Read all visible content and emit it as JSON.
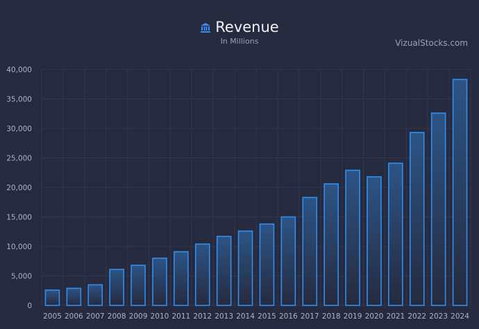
{
  "header": {
    "title": "Revenue",
    "subtitle": "In Millions",
    "watermark": "VizualStocks.com",
    "icon": "bank-icon"
  },
  "colors": {
    "background": "#262a3e",
    "bar_stroke": "#2f8ef0",
    "bar_fill_top": "#2c5486",
    "grid": "#323650"
  },
  "chart_data": {
    "type": "bar",
    "title": "Revenue",
    "subtitle": "In Millions",
    "categories": [
      "2005",
      "2006",
      "2007",
      "2008",
      "2009",
      "2010",
      "2011",
      "2012",
      "2013",
      "2014",
      "2015",
      "2016",
      "2017",
      "2018",
      "2019",
      "2020",
      "2021",
      "2022",
      "2023",
      "2024"
    ],
    "values": [
      2600,
      2900,
      3500,
      6100,
      6800,
      8000,
      9100,
      10400,
      11700,
      12600,
      13800,
      15000,
      18300,
      20600,
      22900,
      21800,
      24100,
      29300,
      32600,
      38300
    ],
    "ylim": [
      0,
      40000
    ],
    "yticks": [
      0,
      5000,
      10000,
      15000,
      20000,
      25000,
      30000,
      35000,
      40000
    ],
    "ytick_labels": [
      "0",
      "5,000",
      "10,000",
      "15,000",
      "20,000",
      "25,000",
      "30,000",
      "35,000",
      "40,000"
    ],
    "grid": true,
    "legend": "none"
  }
}
